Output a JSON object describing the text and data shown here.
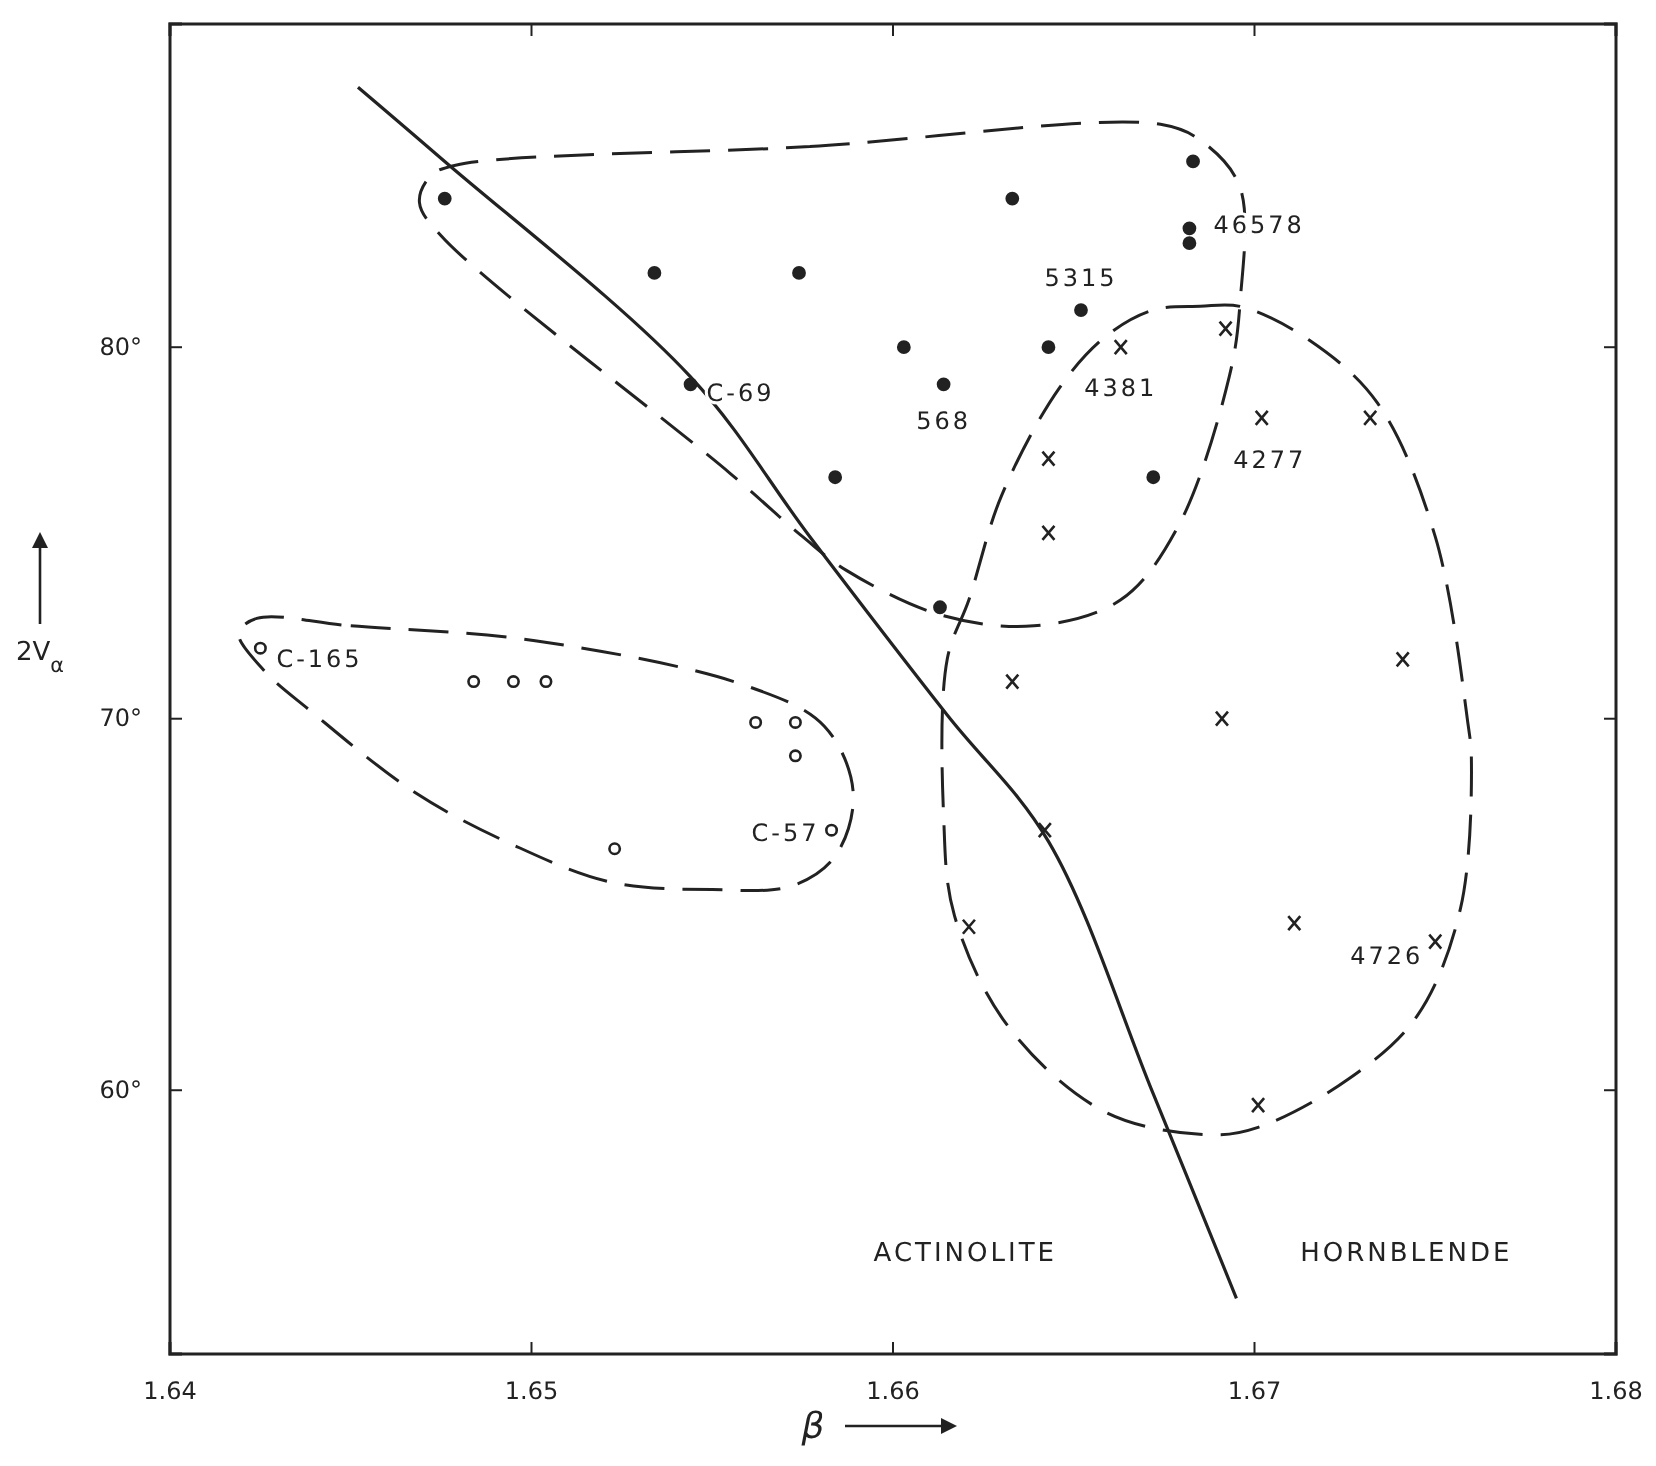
{
  "chart_data": {
    "type": "scatter",
    "xlabel": "β",
    "ylabel": "2V$_{α}$",
    "xlim": [
      1.64,
      1.68
    ],
    "ylim": [
      52.9,
      88.7
    ],
    "xticks": [
      1.64,
      1.65,
      1.66,
      1.67,
      1.68
    ],
    "yticks": [
      {
        "value": 60,
        "label": "60°"
      },
      {
        "value": 70,
        "label": "70°"
      },
      {
        "value": 80,
        "label": "80°"
      }
    ],
    "grid": false,
    "series": [
      {
        "marker": "circle",
        "color": "#222222",
        "x": [
          1.6476,
          1.6534,
          1.6574,
          1.6603,
          1.6614,
          1.6544,
          1.6584,
          1.6613,
          1.6633,
          1.6683,
          1.6682,
          1.6682,
          1.6652,
          1.6643,
          1.6672
        ],
        "values": [
          84.0,
          82.0,
          82.0,
          80.0,
          79.0,
          79.0,
          76.5,
          73.0,
          84.0,
          85.0,
          83.2,
          82.8,
          81.0,
          80.0,
          76.5
        ]
      },
      {
        "marker": "cross",
        "color": "#222222",
        "x": [
          1.6663,
          1.6692,
          1.6702,
          1.6732,
          1.6643,
          1.6643,
          1.6633,
          1.6691,
          1.6741,
          1.6642,
          1.6621,
          1.6711,
          1.675,
          1.6701
        ],
        "values": [
          80.0,
          80.5,
          78.1,
          78.1,
          77.0,
          75.0,
          71.0,
          70.0,
          71.6,
          67.0,
          64.4,
          64.5,
          64.0,
          59.6
        ]
      },
      {
        "marker": "circle",
        "color": "#222222",
        "x": [
          1.6425,
          1.6484,
          1.6495,
          1.6504,
          1.6562,
          1.6573,
          1.6573,
          1.6583,
          1.6523
        ],
        "values": [
          71.9,
          71.0,
          71.0,
          71.0,
          69.9,
          69.9,
          69.0,
          67.0,
          66.5
        ]
      },
      {
        "type": "line",
        "line_style": "solid",
        "color": "#222222",
        "x": [
          1.6452,
          1.6476,
          1.6544,
          1.6577,
          1.6615,
          1.6643,
          1.6672,
          1.6695
        ],
        "values": [
          87.0,
          85.0,
          79.2,
          74.9,
          70.1,
          66.7,
          59.9,
          54.4
        ]
      }
    ],
    "annotations": [
      {
        "text": "C-69",
        "x": 1.6544,
        "y": 79.0
      },
      {
        "text": "568",
        "x": 1.6614,
        "y": 79.0
      },
      {
        "text": "5315",
        "x": 1.6652,
        "y": 81.0
      },
      {
        "text": "46578",
        "x": 1.6682,
        "y": 83.2
      },
      {
        "text": "4381",
        "x": 1.6663,
        "y": 80.0
      },
      {
        "text": "4277",
        "x": 1.6702,
        "y": 78.1
      },
      {
        "text": "4726",
        "x": 1.675,
        "y": 64.0
      },
      {
        "text": "C-165",
        "x": 1.6425,
        "y": 71.9
      },
      {
        "text": "C-57",
        "x": 1.6583,
        "y": 67.0
      },
      "ACTINOLITE",
      "HORNBLENDE"
    ]
  }
}
